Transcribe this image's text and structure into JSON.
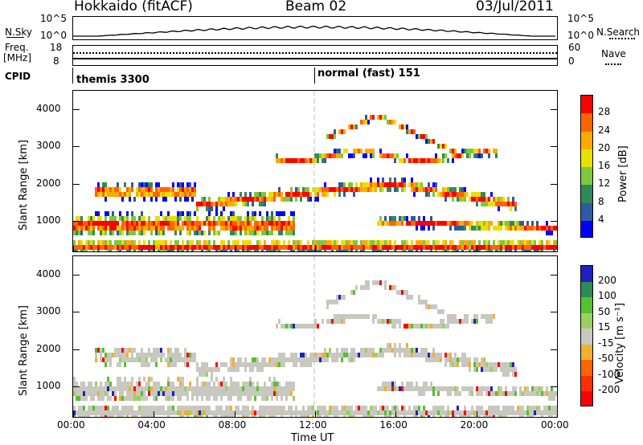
{
  "header": {
    "radar": "Hokkaido (fitACF)",
    "beam": "Beam 02",
    "date": "03/Jul/2011"
  },
  "strip_sky": {
    "left_label": "N.Sky",
    "right_label": "N.Search",
    "ticks_left": [
      "10^5",
      "10^0"
    ],
    "ticks_right": [
      "10^5",
      "10^0"
    ]
  },
  "strip_freq": {
    "left_label_1": "Freq.",
    "left_label_2": "[MHz]",
    "right_label": "Nave",
    "ticks_left": [
      "18",
      "8"
    ],
    "ticks_right": [
      "60",
      "0"
    ]
  },
  "cpid": {
    "label": "CPID",
    "segments": [
      "themis 3300",
      "normal (fast) 151"
    ]
  },
  "chart_data": [
    {
      "type": "heatmap",
      "title": "Power",
      "ylabel": "Slant Range [km]",
      "ylim": [
        180,
        4500
      ],
      "y_ticks": [
        "1000",
        "2000",
        "3000",
        "4000"
      ],
      "x_ticks": [
        "00:00",
        "04:00",
        "08:00",
        "12:00",
        "16:00",
        "20:00",
        "00:00"
      ],
      "colorbar": {
        "label": "Power [dB]",
        "ticks": [
          "28",
          "24",
          "20",
          "16",
          "12",
          "8",
          "4"
        ],
        "colors": [
          "#ff0000",
          "#ff6400",
          "#ffaa00",
          "#e8e000",
          "#7dc83c",
          "#2e8b57",
          "#2e5aa0",
          "#0000ff"
        ]
      }
    },
    {
      "type": "heatmap",
      "title": "Velocity",
      "ylabel": "Slant Range [km]",
      "xlabel": "Time UT",
      "ylim": [
        180,
        4500
      ],
      "y_ticks": [
        "1000",
        "2000",
        "3000",
        "4000"
      ],
      "x_ticks": [
        "00:00",
        "04:00",
        "08:00",
        "12:00",
        "16:00",
        "20:00",
        "00:00"
      ],
      "colorbar": {
        "label": "Velocity [m s⁻¹]",
        "ticks": [
          "200",
          "100",
          "50",
          "15",
          "-15",
          "-50",
          "-100",
          "-200"
        ],
        "colors": [
          "#2020c0",
          "#2e8b57",
          "#55c030",
          "#9ad060",
          "#c8c8c0",
          "#f0b030",
          "#ff6400",
          "#ff3000",
          "#ff0000"
        ]
      }
    }
  ]
}
